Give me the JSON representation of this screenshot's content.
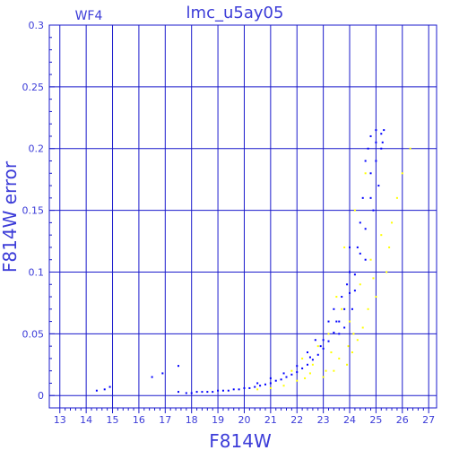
{
  "chart_data": {
    "type": "scatter",
    "title": "lmc_u5ay05",
    "subtitle": "WF4",
    "xlabel": "F814W",
    "ylabel": "F814W error",
    "xlim": [
      12.6,
      27.3
    ],
    "ylim": [
      -0.01,
      0.3
    ],
    "xticks": [
      13,
      14,
      15,
      16,
      17,
      18,
      19,
      20,
      21,
      22,
      23,
      24,
      25,
      26,
      27
    ],
    "yticks": [
      0,
      0.05,
      0.1,
      0.15,
      0.2,
      0.25,
      0.3
    ],
    "ytick_labels": [
      "0",
      "0.05",
      "0.1",
      "0.15",
      "0.2",
      "0.25",
      "0.3"
    ],
    "grid": true,
    "colors": {
      "axes": "#1a1acc",
      "text": "#3c3cd8",
      "series_main": "#0000ff",
      "series_secondary": "#ffff00"
    },
    "series": [
      {
        "color": "#0000ff",
        "points": [
          [
            14.4,
            0.004
          ],
          [
            14.7,
            0.005
          ],
          [
            14.9,
            0.007
          ],
          [
            16.5,
            0.015
          ],
          [
            16.9,
            0.018
          ],
          [
            17.5,
            0.024
          ],
          [
            17.5,
            0.003
          ],
          [
            17.8,
            0.002
          ],
          [
            18.0,
            0.002
          ],
          [
            18.2,
            0.003
          ],
          [
            18.4,
            0.003
          ],
          [
            18.6,
            0.003
          ],
          [
            18.8,
            0.003
          ],
          [
            19.0,
            0.004
          ],
          [
            19.2,
            0.004
          ],
          [
            19.4,
            0.004
          ],
          [
            19.6,
            0.005
          ],
          [
            19.8,
            0.005
          ],
          [
            20.0,
            0.006
          ],
          [
            20.2,
            0.006
          ],
          [
            20.4,
            0.007
          ],
          [
            20.6,
            0.008
          ],
          [
            20.8,
            0.009
          ],
          [
            21.0,
            0.01
          ],
          [
            21.2,
            0.012
          ],
          [
            21.4,
            0.013
          ],
          [
            21.6,
            0.015
          ],
          [
            21.8,
            0.017
          ],
          [
            22.0,
            0.019
          ],
          [
            22.2,
            0.022
          ],
          [
            22.4,
            0.025
          ],
          [
            22.6,
            0.029
          ],
          [
            22.8,
            0.033
          ],
          [
            23.0,
            0.038
          ],
          [
            23.2,
            0.044
          ],
          [
            23.4,
            0.051
          ],
          [
            23.6,
            0.06
          ],
          [
            23.8,
            0.07
          ],
          [
            24.0,
            0.083
          ],
          [
            24.2,
            0.098
          ],
          [
            24.4,
            0.115
          ],
          [
            24.6,
            0.135
          ],
          [
            24.8,
            0.16
          ],
          [
            25.0,
            0.19
          ],
          [
            25.2,
            0.212
          ],
          [
            25.3,
            0.215
          ],
          [
            20.5,
            0.01
          ],
          [
            21.0,
            0.014
          ],
          [
            21.5,
            0.018
          ],
          [
            22.0,
            0.024
          ],
          [
            22.5,
            0.031
          ],
          [
            23.0,
            0.045
          ],
          [
            23.5,
            0.06
          ],
          [
            23.8,
            0.055
          ],
          [
            24.0,
            0.1
          ],
          [
            24.2,
            0.085
          ],
          [
            24.4,
            0.14
          ],
          [
            24.6,
            0.11
          ],
          [
            24.8,
            0.18
          ],
          [
            24.9,
            0.15
          ],
          [
            25.0,
            0.205
          ],
          [
            25.1,
            0.17
          ],
          [
            25.2,
            0.2
          ],
          [
            24.7,
            0.2
          ],
          [
            24.5,
            0.16
          ],
          [
            24.3,
            0.12
          ],
          [
            24.1,
            0.07
          ],
          [
            23.9,
            0.09
          ],
          [
            23.7,
            0.08
          ],
          [
            23.4,
            0.07
          ],
          [
            23.2,
            0.06
          ],
          [
            22.9,
            0.04
          ],
          [
            22.7,
            0.045
          ],
          [
            22.4,
            0.035
          ],
          [
            23.6,
            0.05
          ],
          [
            24.0,
            0.12
          ],
          [
            24.6,
            0.19
          ],
          [
            24.8,
            0.21
          ],
          [
            25.0,
            0.215
          ],
          [
            25.25,
            0.205
          ]
        ]
      },
      {
        "color": "#ffff00",
        "points": [
          [
            20.5,
            0.005
          ],
          [
            21.0,
            0.006
          ],
          [
            21.5,
            0.008
          ],
          [
            22.0,
            0.012
          ],
          [
            22.2,
            0.03
          ],
          [
            22.5,
            0.018
          ],
          [
            22.8,
            0.04
          ],
          [
            23.0,
            0.015
          ],
          [
            23.2,
            0.05
          ],
          [
            23.4,
            0.02
          ],
          [
            23.5,
            0.08
          ],
          [
            23.6,
            0.03
          ],
          [
            23.8,
            0.12
          ],
          [
            23.9,
            0.025
          ],
          [
            24.0,
            0.06
          ],
          [
            24.1,
            0.035
          ],
          [
            24.2,
            0.15
          ],
          [
            24.3,
            0.045
          ],
          [
            24.4,
            0.09
          ],
          [
            24.5,
            0.055
          ],
          [
            24.6,
            0.18
          ],
          [
            24.7,
            0.07
          ],
          [
            24.8,
            0.11
          ],
          [
            25.0,
            0.08
          ],
          [
            25.2,
            0.13
          ],
          [
            25.4,
            0.1
          ],
          [
            25.6,
            0.14
          ],
          [
            25.8,
            0.16
          ],
          [
            26.0,
            0.18
          ],
          [
            26.3,
            0.2
          ],
          [
            23.1,
            0.02
          ],
          [
            22.6,
            0.025
          ],
          [
            23.7,
            0.07
          ],
          [
            24.9,
            0.095
          ],
          [
            25.5,
            0.12
          ],
          [
            23.3,
            0.035
          ],
          [
            22.3,
            0.014
          ],
          [
            21.8,
            0.02
          ],
          [
            24.15,
            0.05
          ],
          [
            23.95,
            0.04
          ]
        ]
      }
    ]
  }
}
